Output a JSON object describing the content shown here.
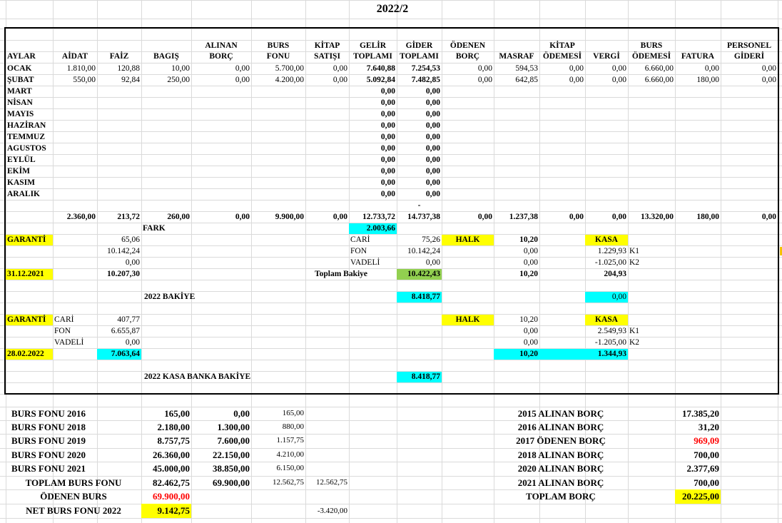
{
  "title": "2022/2",
  "colors": {
    "yellow": "#ffff00",
    "cyan": "#00ffff",
    "green": "#92d050",
    "red": "#ff0000",
    "grid": "#dadada"
  },
  "headers": {
    "aylar": "AYLAR",
    "aidat": "AİDAT",
    "faiz": "FAİZ",
    "bagis": "BAGIŞ",
    "alinan_borc_1": "ALINAN",
    "alinan_borc_2": "BORÇ",
    "burs_fonu_1": "BURS",
    "burs_fonu_2": "FONU",
    "kitap_satisi_1": "KİTAP",
    "kitap_satisi_2": "SATIŞI",
    "gelir_1": "GELİR",
    "gelir_2": "TOPLAMI",
    "gider_1": "GİDER",
    "gider_2": "TOPLAMI",
    "odenen_borc_1": "ÖDENEN",
    "odenen_borc_2": "BORÇ",
    "masraf": "MASRAF",
    "kitap_odemesi_1": "KİTAP",
    "kitap_odemesi_2": "ÖDEMESİ",
    "vergi": "VERGİ",
    "burs_odemesi_1": "BURS",
    "burs_odemesi_2": "ÖDEMESİ",
    "fatura": "FATURA",
    "personel_1": "PERSONEL",
    "personel_2": "GİDERİ"
  },
  "months": [
    "OCAK",
    "ŞUBAT",
    "MART",
    "NİSAN",
    "MAYIS",
    "HAZİRAN",
    "TEMMUZ",
    "AGUSTOS",
    "EYLÜL",
    "EKİM",
    "KASIM",
    "ARALIK"
  ],
  "rows": [
    {
      "aidat": "1.810,00",
      "faiz": "120,88",
      "bagis": "10,00",
      "alinan": "0,00",
      "burs": "5.700,00",
      "kitap": "0,00",
      "gelir": "7.640,88",
      "gider": "7.254,53",
      "odenen": "0,00",
      "masraf": "594,53",
      "kitapod": "0,00",
      "vergi": "0,00",
      "bursod": "6.660,00",
      "fatura": "0,00",
      "personel": "0,00"
    },
    {
      "aidat": "550,00",
      "faiz": "92,84",
      "bagis": "250,00",
      "alinan": "0,00",
      "burs": "4.200,00",
      "kitap": "0,00",
      "gelir": "5.092,84",
      "gider": "7.482,85",
      "odenen": "0,00",
      "masraf": "642,85",
      "kitapod": "0,00",
      "vergi": "0,00",
      "bursod": "6.660,00",
      "fatura": "180,00",
      "personel": "0,00"
    }
  ],
  "empty_total": "0,00",
  "dash": "-",
  "totals": {
    "aidat": "2.360,00",
    "faiz": "213,72",
    "bagis": "260,00",
    "alinan": "0,00",
    "burs": "9.900,00",
    "kitap": "0,00",
    "gelir": "12.733,72",
    "gider": "14.737,38",
    "odenen": "0,00",
    "masraf": "1.237,38",
    "kitapod": "0,00",
    "vergi": "0,00",
    "bursod": "13.320,00",
    "fatura": "180,00",
    "personel": "0,00"
  },
  "fark": {
    "label": "FARK",
    "value": "2.003,66"
  },
  "block1": {
    "garanti": "GARANTİ",
    "g1": "65,06",
    "g2": "10.142,24",
    "g3": "0,00",
    "date": "31.12.2021",
    "gtotal": "10.207,30",
    "cari": "CARİ",
    "cari_v": "75,26",
    "fon": "FON",
    "fon_v": "10.142,24",
    "vadeli": "VADELİ",
    "vadeli_v": "0,00",
    "toplam_label": "Toplam Bakiye",
    "toplam_v": "10.422,43",
    "halk": "HALK",
    "h1": "10,20",
    "h2": "0,00",
    "h3": "0,00",
    "htotal": "10,20",
    "kasa": "KASA",
    "k1": "1.229,93",
    "k1_label": "K1",
    "k2": "-1.025,00",
    "k2_label": "K2",
    "ktotal": "204,93",
    "bakiye_label": "2022 BAKİYE",
    "bakiye_v": "8.418,77",
    "kasa_zero": "0,00"
  },
  "block2": {
    "garanti": "GARANTİ",
    "cari": "CARİ",
    "cari_v": "407,77",
    "fon": "FON",
    "fon_v": "6.655,87",
    "vadeli": "VADELİ",
    "vadeli_v": "0,00",
    "date": "28.02.2022",
    "gtotal": "7.063,64",
    "halk": "HALK",
    "h1": "10,20",
    "h2": "0,00",
    "h3": "0,00",
    "htotal": "10,20",
    "kasa": "KASA",
    "k1": "2.549,93",
    "k1_label": "K1",
    "k2": "-1.205,00",
    "k2_label": "K2",
    "ktotal": "1.344,93",
    "kasa_banka_label": "2022 KASA BANKA BAKİYE",
    "kasa_banka_v": "8.418,77"
  },
  "burs_fonu": [
    {
      "label": "BURS FONU 2016",
      "a": "165,00",
      "b": "0,00",
      "c": "165,00"
    },
    {
      "label": "BURS FONU 2018",
      "a": "2.180,00",
      "b": "1.300,00",
      "c": "880,00"
    },
    {
      "label": "BURS FONU 2019",
      "a": "8.757,75",
      "b": "7.600,00",
      "c": "1.157,75"
    },
    {
      "label": "BURS FONU 2020",
      "a": "26.360,00",
      "b": "22.150,00",
      "c": "4.210,00"
    },
    {
      "label": "BURS FONU 2021",
      "a": "45.000,00",
      "b": "38.850,00",
      "c": "6.150,00"
    }
  ],
  "toplam_burs": {
    "label": "TOPLAM BURS FONU",
    "a": "82.462,75",
    "b": "69.900,00",
    "c": "12.562,75",
    "d": "12.562,75"
  },
  "odenen_burs": {
    "label": "ÖDENEN BURS",
    "a": "69.900,00"
  },
  "net_burs": {
    "label": "NET BURS FONU 2022",
    "a": "9.142,75",
    "d": "-3.420,00"
  },
  "borclar": [
    {
      "label": "2015 ALINAN BORÇ",
      "v": "17.385,20"
    },
    {
      "label": "2016  ALINAN BORÇ",
      "v": "31,20"
    },
    {
      "label": "2017 ÖDENEN BORÇ",
      "v": "969,09"
    },
    {
      "label": "2018  ALINAN BORÇ",
      "v": "700,00"
    },
    {
      "label": "2020 ALINAN BORÇ",
      "v": "2.377,69"
    },
    {
      "label": "2021 ALINAN BORÇ",
      "v": "700,00"
    }
  ],
  "toplam_borc": {
    "label": "TOPLAM BORÇ",
    "v": "20.225,00"
  }
}
